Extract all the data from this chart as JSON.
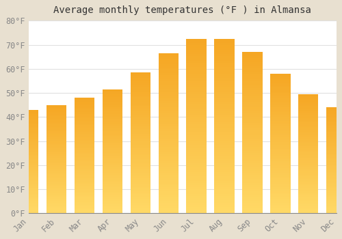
{
  "title": "Average monthly temperatures (°F ) in Almansa",
  "months": [
    "Jan",
    "Feb",
    "Mar",
    "Apr",
    "May",
    "Jun",
    "Jul",
    "Aug",
    "Sep",
    "Oct",
    "Nov",
    "Dec"
  ],
  "values": [
    43,
    45,
    48,
    51.5,
    58.5,
    66.5,
    72.5,
    72.5,
    67,
    58,
    49.5,
    44
  ],
  "bar_color_top": "#F5A623",
  "bar_color_bottom": "#FFD966",
  "background_color": "#E8E0D0",
  "plot_background": "#FFFFFF",
  "grid_color": "#E0E0E0",
  "ylim": [
    0,
    80
  ],
  "yticks": [
    0,
    10,
    20,
    30,
    40,
    50,
    60,
    70,
    80
  ],
  "tick_label_color": "#888888",
  "title_fontsize": 10,
  "tick_fontsize": 8.5
}
